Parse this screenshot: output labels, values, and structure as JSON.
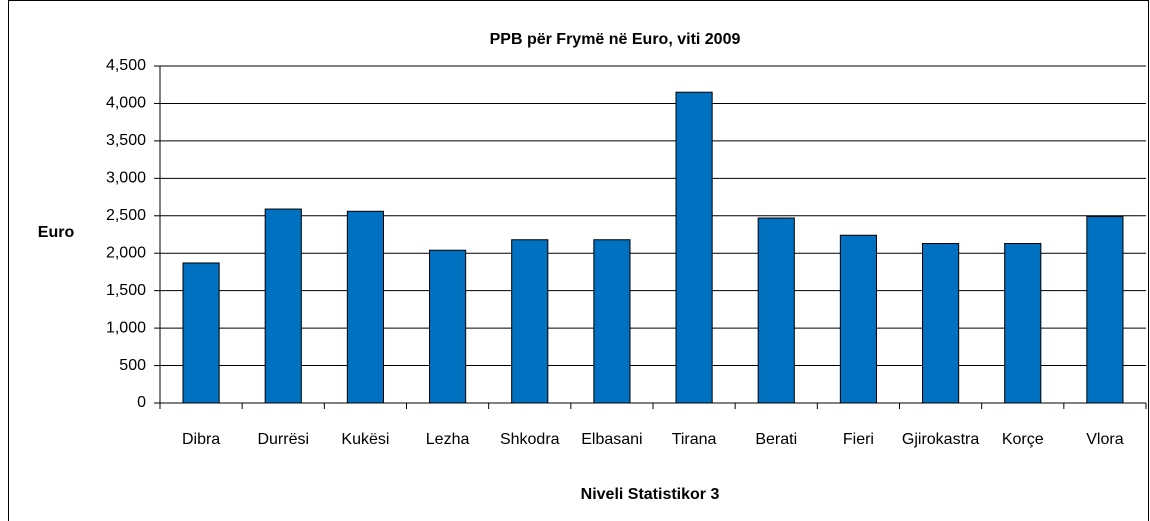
{
  "chart_data": {
    "type": "bar",
    "title": "PPB për Frymë në Euro, viti 2009",
    "y_axis_label": "Euro",
    "x_axis_label": "Niveli Statistikor 3",
    "categories": [
      "Dibra",
      "Durrësi",
      "Kukësi",
      "Lezha",
      "Shkodra",
      "Elbasani",
      "Tirana",
      "Berati",
      "Fieri",
      "Gjirokastra",
      "Korçe",
      "Vlora"
    ],
    "values": [
      1870,
      2590,
      2560,
      2040,
      2180,
      2180,
      4150,
      2470,
      2240,
      2130,
      2130,
      2490
    ],
    "color": "#0070c0",
    "ylim": [
      0,
      4500
    ],
    "yticks": [
      0,
      500,
      {
        "value": 1000,
        "label": "1,000"
      },
      {
        "value": 1500,
        "label": "1,500"
      },
      {
        "value": 2000,
        "label": "2,000"
      },
      {
        "value": 2500,
        "label": "2,500"
      },
      {
        "value": 3000,
        "label": "3,000"
      },
      {
        "value": 3500,
        "label": "3,500"
      },
      {
        "value": 4000,
        "label": "4,000"
      },
      {
        "value": 4500,
        "label": "4,500"
      }
    ],
    "grid": true
  }
}
